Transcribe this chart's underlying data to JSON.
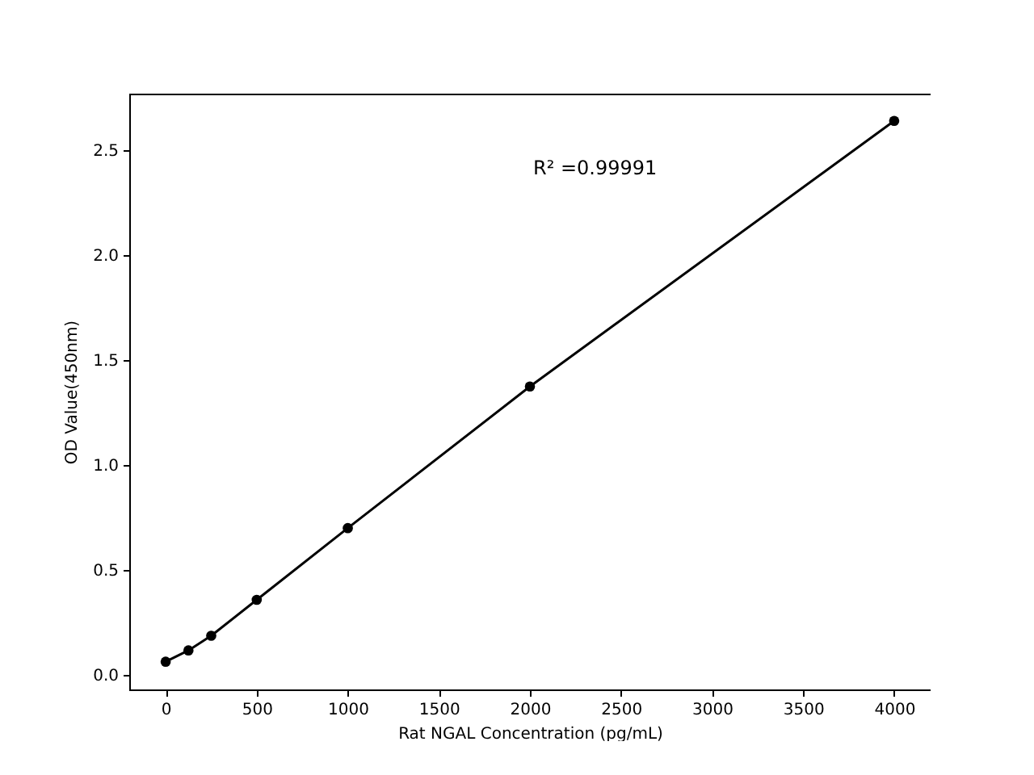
{
  "chart_data": {
    "type": "line",
    "xlabel": "Rat NGAL Concentration (pg/mL)",
    "ylabel": "OD Value(450nm)",
    "x": [
      0,
      125,
      250,
      500,
      1000,
      2000,
      4000
    ],
    "series": [
      {
        "color": "#000000",
        "values": [
          0.062,
          0.116,
          0.186,
          0.357,
          0.699,
          1.374,
          2.64
        ]
      }
    ],
    "xlim": [
      -200,
      4200
    ],
    "xticks": [
      0,
      500,
      1000,
      1500,
      2000,
      2500,
      3000,
      3500,
      4000
    ],
    "ylim": [
      -0.07,
      2.77
    ],
    "yticks": [
      {
        "value": 0,
        "label": "0.0"
      },
      0.5,
      {
        "value": 1,
        "label": "1.0"
      },
      1.5,
      {
        "value": 2,
        "label": "2.0"
      },
      2.5
    ],
    "marker": "circle",
    "line_style": "solid",
    "grid": false,
    "annotations": [
      "R² =0.99991"
    ]
  }
}
